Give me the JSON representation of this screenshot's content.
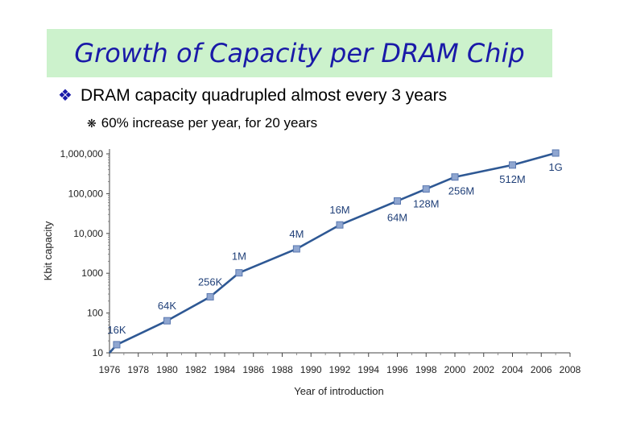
{
  "slide": {
    "title": "Growth of Capacity per DRAM Chip",
    "bullet1": "DRAM capacity quadrupled almost every 3 years",
    "bullet1_icon": "diamond-bullet-icon",
    "bullet2": "60% increase per year, for 20 years",
    "bullet2_icon": "asterisk-bullet-icon",
    "accent": "#1a1aa8",
    "title_bg": "#ccf2cc"
  },
  "chart_data": {
    "type": "line",
    "yscale": "log",
    "title": "",
    "xlabel": "Year of introduction",
    "ylabel": "Kbit capacity",
    "xlim": [
      1976,
      2008
    ],
    "ylim": [
      10,
      1000000
    ],
    "x_ticks": [
      "1976",
      "1978",
      "1980",
      "1982",
      "1984",
      "1986",
      "1988",
      "1990",
      "1992",
      "1994",
      "1996",
      "1998",
      "2000",
      "2002",
      "2004",
      "2006",
      "2008"
    ],
    "y_ticks": [
      {
        "value": 10,
        "label": "10"
      },
      {
        "value": 100,
        "label": "100"
      },
      {
        "value": 1000,
        "label": "1000"
      },
      {
        "value": 10000,
        "label": "10,000"
      },
      {
        "value": 100000,
        "label": "100,000"
      },
      {
        "value": 1000000,
        "label": "1,000,000"
      }
    ],
    "series": [
      {
        "name": "DRAM",
        "color": "#2e5894",
        "marker_color": "#8fa6d0",
        "points": [
          {
            "x": 1976.5,
            "y": 16,
            "label": "16K"
          },
          {
            "x": 1980,
            "y": 64,
            "label": "64K"
          },
          {
            "x": 1983,
            "y": 256,
            "label": "256K"
          },
          {
            "x": 1985,
            "y": 1024,
            "label": "1M"
          },
          {
            "x": 1989,
            "y": 4096,
            "label": "4M"
          },
          {
            "x": 1992,
            "y": 16384,
            "label": "16M"
          },
          {
            "x": 1996,
            "y": 65536,
            "label": "64M"
          },
          {
            "x": 1998,
            "y": 131072,
            "label": "128M"
          },
          {
            "x": 2000,
            "y": 262144,
            "label": "256M"
          },
          {
            "x": 2004,
            "y": 524288,
            "label": "512M"
          },
          {
            "x": 2007,
            "y": 1048576,
            "label": "1G"
          }
        ]
      }
    ]
  }
}
